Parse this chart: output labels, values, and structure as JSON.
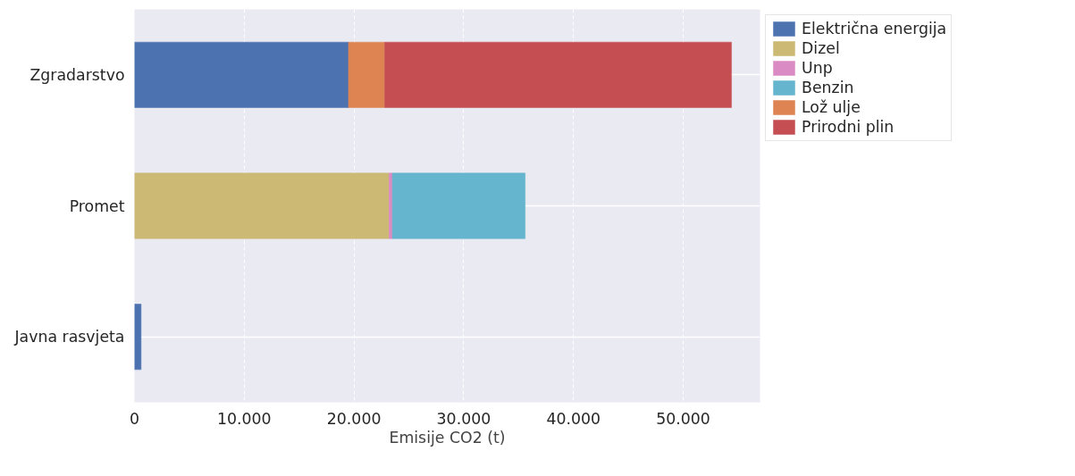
{
  "chart_data": {
    "type": "bar",
    "orientation": "horizontal",
    "stacked": true,
    "xlabel": "Emisije CO2 (t)",
    "categories": [
      "Zgradarstvo",
      "Promet",
      "Javna rasvjeta"
    ],
    "series": [
      {
        "name": "Električna energija",
        "color": "#4c72b0",
        "values": [
          19500,
          null,
          600
        ]
      },
      {
        "name": "Dizel",
        "color": "#ccb974",
        "values": [
          null,
          23200,
          null
        ]
      },
      {
        "name": "Unp",
        "color": "#da8bc3",
        "values": [
          null,
          300,
          null
        ]
      },
      {
        "name": "Benzin",
        "color": "#64b5cd",
        "values": [
          null,
          12100,
          null
        ]
      },
      {
        "name": "Lož ulje",
        "color": "#dd8452",
        "values": [
          3300,
          null,
          null
        ]
      },
      {
        "name": "Prirodni plin",
        "color": "#c44e52",
        "values": [
          31600,
          null,
          null
        ]
      }
    ],
    "xlim": [
      0,
      57000
    ],
    "xticks": [
      0,
      {
        "value": 10000,
        "label": "10.000"
      },
      {
        "value": 20000,
        "label": "20.000"
      },
      {
        "value": 30000,
        "label": "30.000"
      },
      {
        "value": 40000,
        "label": "40.000"
      },
      {
        "value": 50000,
        "label": "50.000"
      }
    ],
    "grid": true,
    "legend": "top right"
  }
}
